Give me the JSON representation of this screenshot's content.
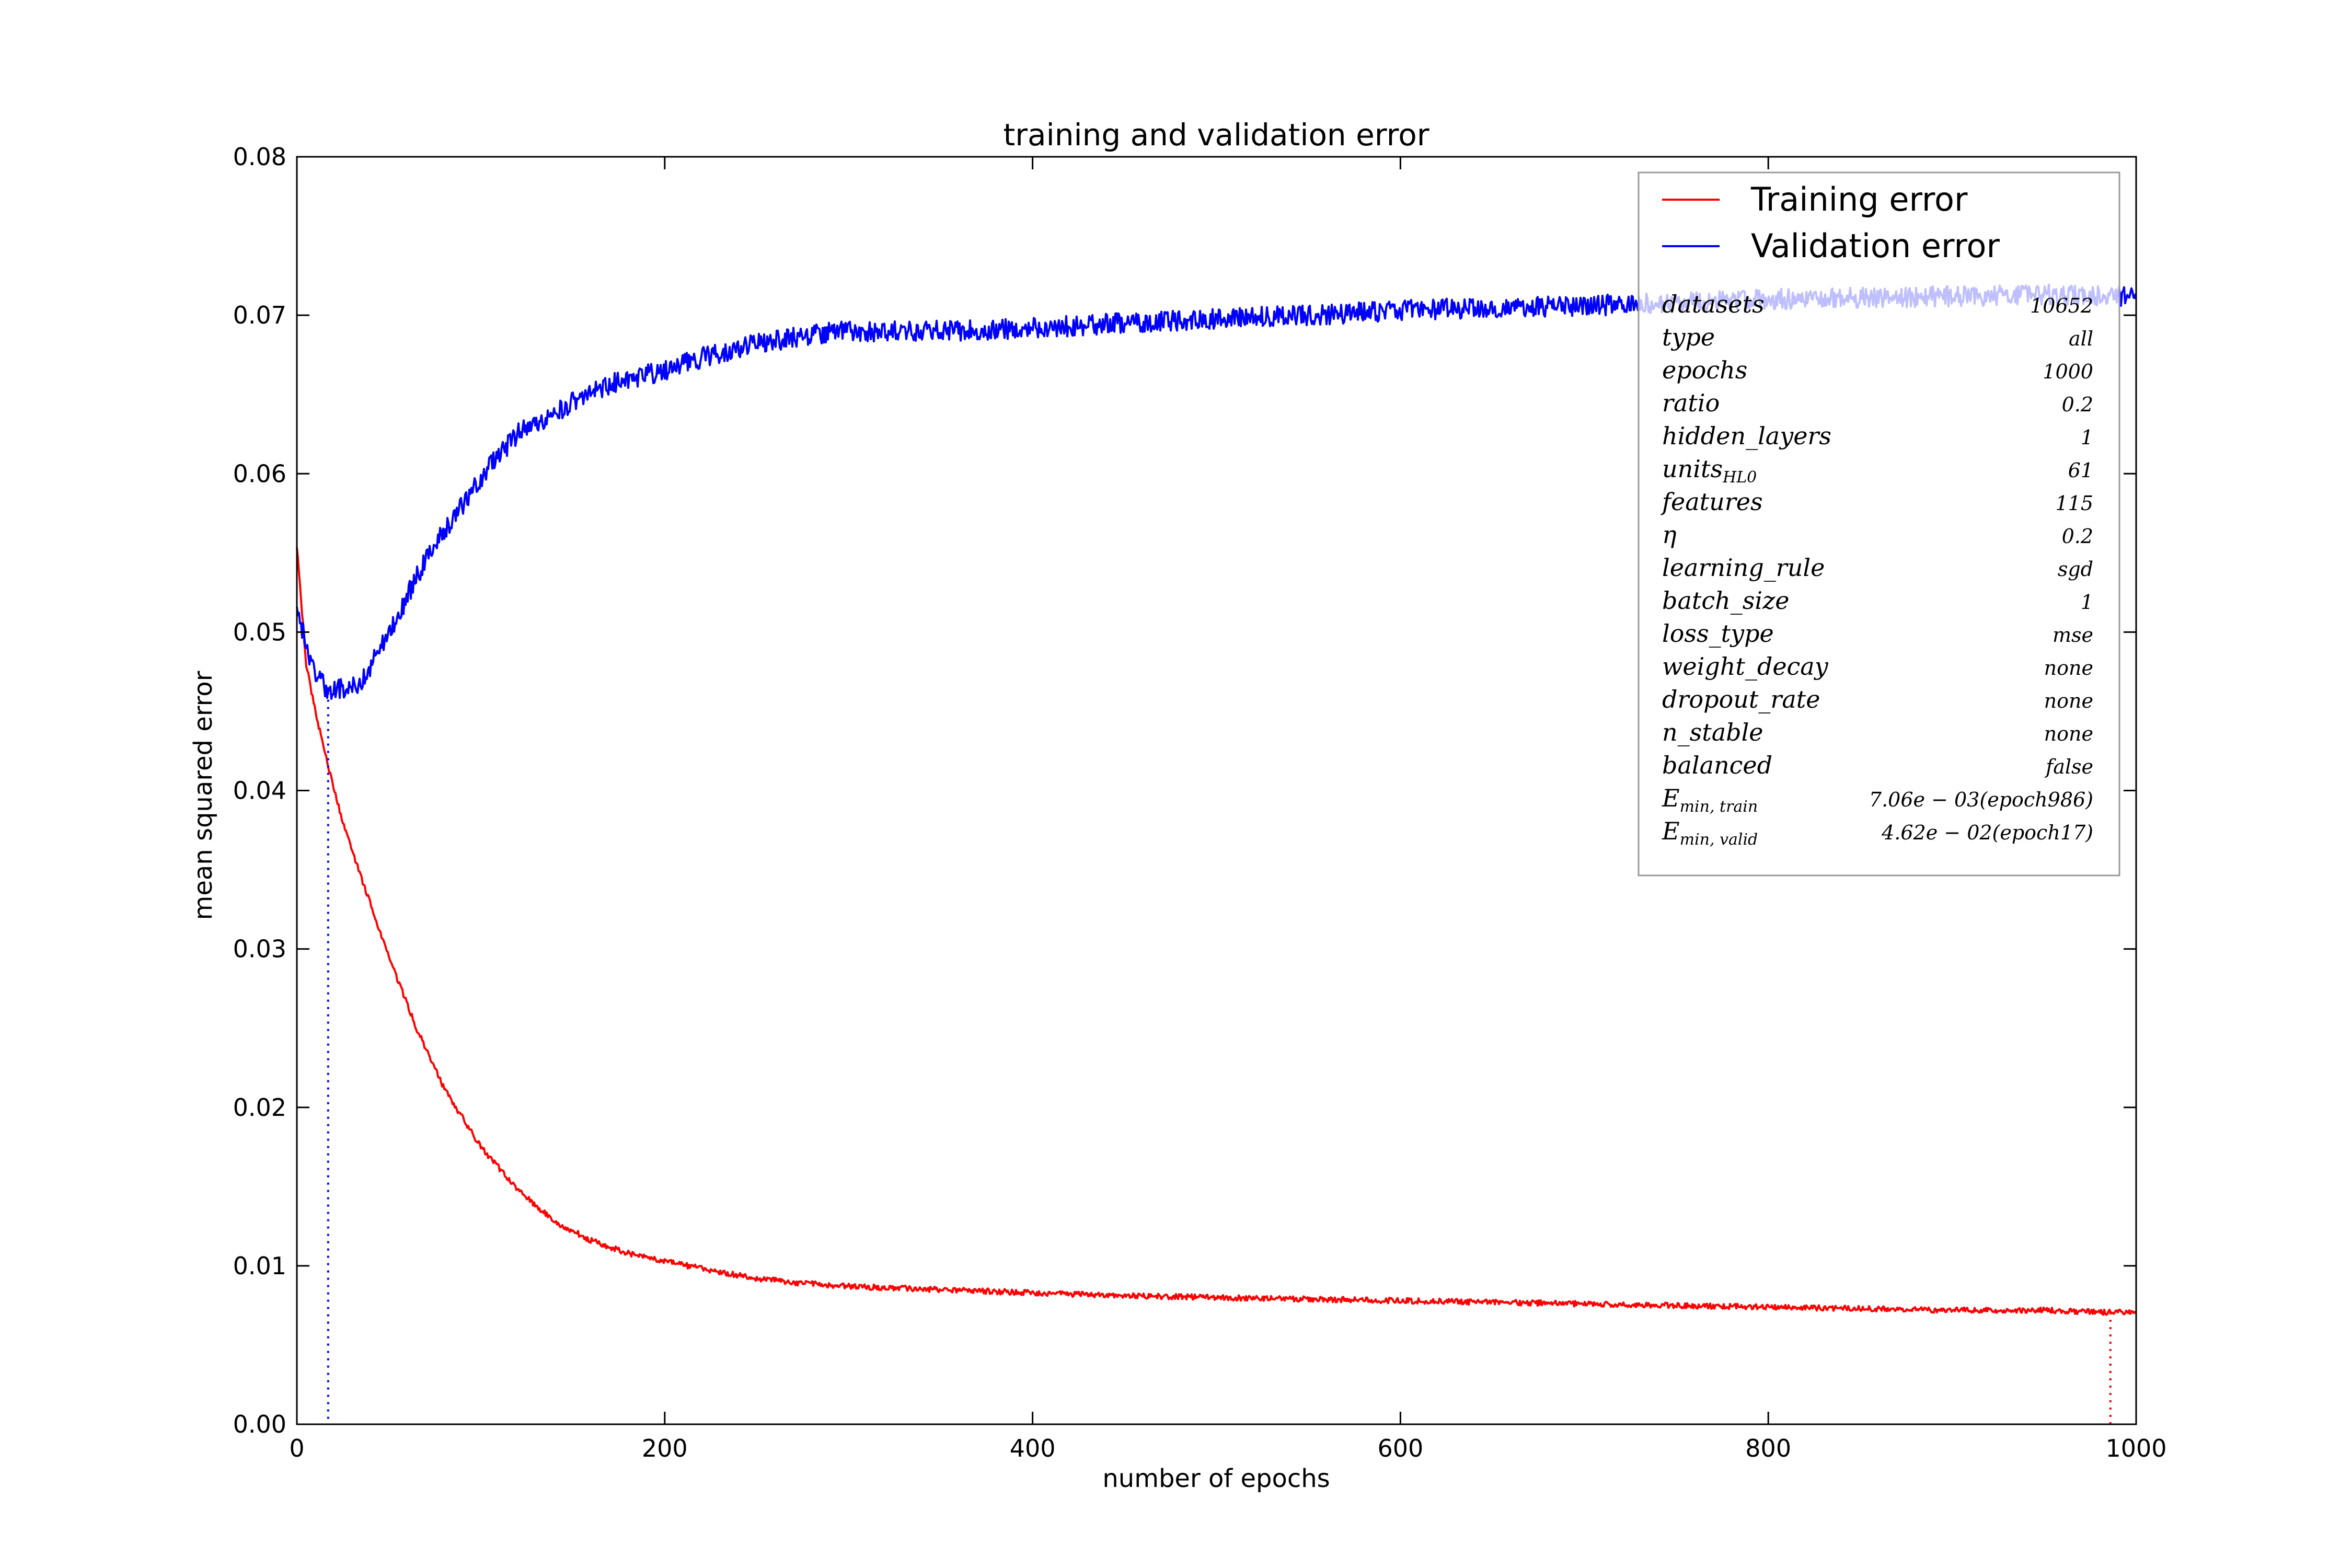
{
  "chart_data": {
    "type": "line",
    "title": "training and validation error",
    "xlabel": "number of epochs",
    "ylabel": "mean squared error",
    "xlim": [
      0,
      1000
    ],
    "ylim": [
      0,
      0.08
    ],
    "xticks": [
      "0",
      "200",
      "400",
      "600",
      "800",
      "1000"
    ],
    "yticks": [
      "0.00",
      "0.01",
      "0.02",
      "0.03",
      "0.04",
      "0.05",
      "0.06",
      "0.07",
      "0.08"
    ],
    "grid": false,
    "legend_position": "top-right",
    "series": [
      {
        "name": "Training error",
        "color": "#ff0000",
        "x": [
          0,
          5,
          10,
          17,
          25,
          35,
          50,
          65,
          80,
          100,
          120,
          140,
          160,
          180,
          200,
          225,
          250,
          275,
          300,
          350,
          400,
          450,
          500,
          550,
          600,
          650,
          700,
          750,
          800,
          850,
          900,
          950,
          986,
          1000
        ],
        "y": [
          0.0555,
          0.048,
          0.045,
          0.0415,
          0.038,
          0.0345,
          0.0295,
          0.025,
          0.0212,
          0.0175,
          0.0148,
          0.0128,
          0.0116,
          0.0108,
          0.0103,
          0.0097,
          0.0092,
          0.0089,
          0.0087,
          0.0085,
          0.0083,
          0.0081,
          0.008,
          0.0079,
          0.0078,
          0.0077,
          0.0076,
          0.0075,
          0.0074,
          0.0073,
          0.0072,
          0.0072,
          0.00706,
          0.0071
        ]
      },
      {
        "name": "Validation error",
        "color": "#0000ff",
        "x": [
          0,
          5,
          10,
          17,
          25,
          35,
          45,
          55,
          65,
          75,
          90,
          105,
          120,
          140,
          160,
          180,
          200,
          225,
          250,
          275,
          300,
          350,
          400,
          450,
          500,
          550,
          600,
          650,
          700,
          750,
          800,
          850,
          900,
          950,
          1000
        ],
        "y": [
          0.052,
          0.049,
          0.0475,
          0.0462,
          0.0465,
          0.0468,
          0.049,
          0.051,
          0.0535,
          0.0555,
          0.058,
          0.0605,
          0.0625,
          0.0638,
          0.0652,
          0.066,
          0.0665,
          0.0675,
          0.0682,
          0.0687,
          0.069,
          0.069,
          0.0692,
          0.0695,
          0.0698,
          0.07,
          0.0703,
          0.0705,
          0.0706,
          0.0708,
          0.071,
          0.0711,
          0.0712,
          0.0713,
          0.0712
        ]
      }
    ],
    "markers": [
      {
        "name": "min-valid-marker",
        "x": 17,
        "y": 0.0462,
        "color": "#0000ff"
      },
      {
        "name": "min-train-marker",
        "x": 986,
        "y": 0.00706,
        "color": "#ff0000"
      }
    ],
    "legend_params": [
      {
        "key": "datasets",
        "value": "10652"
      },
      {
        "key": "type",
        "value": "all"
      },
      {
        "key": "epochs",
        "value": "1000"
      },
      {
        "key": "ratio",
        "value": "0.2"
      },
      {
        "key": "hidden_layers",
        "value": "1"
      },
      {
        "key": "units",
        "sub": "HL0",
        "value": "61"
      },
      {
        "key": "features",
        "value": "115"
      },
      {
        "key": "η",
        "value": "0.2"
      },
      {
        "key": "learning_rule",
        "value": "sgd"
      },
      {
        "key": "batch_size",
        "value": "1"
      },
      {
        "key": "loss_type",
        "value": "mse"
      },
      {
        "key": "weight_decay",
        "value": "none"
      },
      {
        "key": "dropout_rate",
        "value": "none"
      },
      {
        "key": "n_stable",
        "value": "none"
      },
      {
        "key": "balanced",
        "value": "false"
      },
      {
        "key": "E",
        "sub": "min, train",
        "value": "7.06e − 03(epoch986)",
        "color": "#ff0000"
      },
      {
        "key": "E",
        "sub": "min, valid",
        "value": "4.62e − 02(epoch17)",
        "color": "#0000ff"
      }
    ]
  }
}
